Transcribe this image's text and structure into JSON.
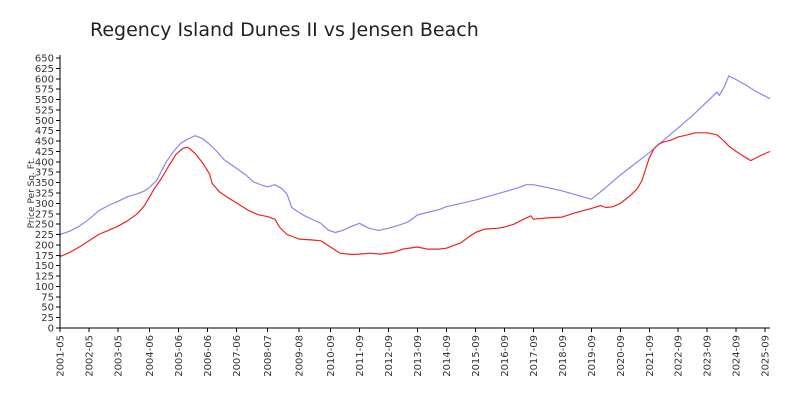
{
  "chart_data": {
    "type": "line",
    "title": "Regency Island Dunes II vs Jensen Beach",
    "xlabel": "",
    "ylabel": "Price Per Sq. Ft.",
    "ylim": [
      0,
      650
    ],
    "yticks": [
      0,
      25,
      50,
      75,
      100,
      125,
      150,
      175,
      200,
      225,
      250,
      275,
      300,
      325,
      350,
      375,
      400,
      425,
      450,
      475,
      500,
      525,
      550,
      575,
      600,
      625,
      650
    ],
    "xticks": [
      "2001-05",
      "2002-05",
      "2003-05",
      "2004-06",
      "2005-06",
      "2006-06",
      "2007-06",
      "2008-07",
      "2009-08",
      "2010-09",
      "2011-09",
      "2012-09",
      "2013-09",
      "2014-09",
      "2015-09",
      "2016-09",
      "2017-09",
      "2018-09",
      "2019-09",
      "2020-09",
      "2021-09",
      "2022-09",
      "2023-09",
      "2024-09",
      "2025-09"
    ],
    "xrange": [
      "2001-05",
      "2025-11"
    ],
    "grid": false,
    "legend": "none",
    "series": [
      {
        "color": "#8888ee",
        "points": [
          [
            "2001-05",
            225
          ],
          [
            "2001-09",
            233
          ],
          [
            "2002-01",
            245
          ],
          [
            "2002-05",
            262
          ],
          [
            "2002-09",
            282
          ],
          [
            "2003-01",
            295
          ],
          [
            "2003-05",
            305
          ],
          [
            "2003-09",
            316
          ],
          [
            "2004-01",
            323
          ],
          [
            "2004-04",
            330
          ],
          [
            "2004-06",
            338
          ],
          [
            "2004-09",
            355
          ],
          [
            "2004-11",
            378
          ],
          [
            "2005-01",
            400
          ],
          [
            "2005-04",
            425
          ],
          [
            "2005-07",
            445
          ],
          [
            "2005-10",
            455
          ],
          [
            "2006-01",
            463
          ],
          [
            "2006-04",
            456
          ],
          [
            "2006-07",
            442
          ],
          [
            "2006-10",
            425
          ],
          [
            "2007-01",
            405
          ],
          [
            "2007-06",
            385
          ],
          [
            "2007-10",
            368
          ],
          [
            "2008-01",
            352
          ],
          [
            "2008-05",
            343
          ],
          [
            "2008-07",
            340
          ],
          [
            "2008-10",
            345
          ],
          [
            "2009-01",
            335
          ],
          [
            "2009-03",
            322
          ],
          [
            "2009-05",
            290
          ],
          [
            "2009-08",
            278
          ],
          [
            "2009-11",
            268
          ],
          [
            "2010-02",
            260
          ],
          [
            "2010-05",
            252
          ],
          [
            "2010-08",
            236
          ],
          [
            "2010-11",
            230
          ],
          [
            "2011-02",
            235
          ],
          [
            "2011-05",
            243
          ],
          [
            "2011-09",
            252
          ],
          [
            "2012-01",
            240
          ],
          [
            "2012-05",
            235
          ],
          [
            "2012-09",
            240
          ],
          [
            "2013-01",
            247
          ],
          [
            "2013-05",
            255
          ],
          [
            "2013-09",
            272
          ],
          [
            "2014-01",
            278
          ],
          [
            "2014-06",
            285
          ],
          [
            "2014-09",
            292
          ],
          [
            "2015-03",
            300
          ],
          [
            "2015-09",
            308
          ],
          [
            "2016-03",
            318
          ],
          [
            "2016-09",
            328
          ],
          [
            "2017-03",
            338
          ],
          [
            "2017-06",
            345
          ],
          [
            "2017-09",
            345
          ],
          [
            "2018-03",
            338
          ],
          [
            "2018-09",
            330
          ],
          [
            "2019-03",
            320
          ],
          [
            "2019-09",
            310
          ],
          [
            "2020-03",
            338
          ],
          [
            "2020-09",
            368
          ],
          [
            "2021-03",
            395
          ],
          [
            "2021-09",
            422
          ],
          [
            "2022-03",
            452
          ],
          [
            "2022-09",
            482
          ],
          [
            "2023-03",
            512
          ],
          [
            "2023-09",
            545
          ],
          [
            "2024-01",
            568
          ],
          [
            "2024-02",
            560
          ],
          [
            "2024-04",
            580
          ],
          [
            "2024-06",
            607
          ],
          [
            "2024-09",
            598
          ],
          [
            "2025-01",
            585
          ],
          [
            "2025-05",
            570
          ],
          [
            "2025-09",
            558
          ],
          [
            "2025-11",
            552
          ]
        ]
      },
      {
        "color": "#ee2222",
        "points": [
          [
            "2001-05",
            172
          ],
          [
            "2001-09",
            182
          ],
          [
            "2002-01",
            195
          ],
          [
            "2002-05",
            210
          ],
          [
            "2002-09",
            225
          ],
          [
            "2003-01",
            235
          ],
          [
            "2003-05",
            245
          ],
          [
            "2003-09",
            258
          ],
          [
            "2004-01",
            275
          ],
          [
            "2004-04",
            295
          ],
          [
            "2004-06",
            315
          ],
          [
            "2004-08",
            335
          ],
          [
            "2004-11",
            360
          ],
          [
            "2005-02",
            390
          ],
          [
            "2005-05",
            418
          ],
          [
            "2005-08",
            433
          ],
          [
            "2005-10",
            435
          ],
          [
            "2006-01",
            420
          ],
          [
            "2006-04",
            398
          ],
          [
            "2006-07",
            370
          ],
          [
            "2006-08",
            348
          ],
          [
            "2006-11",
            328
          ],
          [
            "2007-03",
            312
          ],
          [
            "2007-07",
            298
          ],
          [
            "2007-11",
            283
          ],
          [
            "2008-03",
            273
          ],
          [
            "2008-07",
            268
          ],
          [
            "2008-10",
            262
          ],
          [
            "2008-12",
            242
          ],
          [
            "2009-03",
            225
          ],
          [
            "2009-08",
            214
          ],
          [
            "2010-01",
            212
          ],
          [
            "2010-05",
            210
          ],
          [
            "2010-09",
            195
          ],
          [
            "2011-01",
            180
          ],
          [
            "2011-06",
            177
          ],
          [
            "2011-09",
            178
          ],
          [
            "2012-01",
            180
          ],
          [
            "2012-06",
            178
          ],
          [
            "2012-11",
            182
          ],
          [
            "2013-03",
            190
          ],
          [
            "2013-09",
            195
          ],
          [
            "2014-01",
            190
          ],
          [
            "2014-06",
            190
          ],
          [
            "2014-09",
            192
          ],
          [
            "2015-03",
            205
          ],
          [
            "2015-06",
            218
          ],
          [
            "2015-09",
            230
          ],
          [
            "2016-01",
            238
          ],
          [
            "2016-06",
            240
          ],
          [
            "2016-09",
            243
          ],
          [
            "2017-01",
            250
          ],
          [
            "2017-05",
            262
          ],
          [
            "2017-08",
            270
          ],
          [
            "2017-09",
            262
          ],
          [
            "2018-03",
            265
          ],
          [
            "2018-09",
            267
          ],
          [
            "2019-01",
            275
          ],
          [
            "2019-06",
            283
          ],
          [
            "2019-09",
            288
          ],
          [
            "2020-01",
            295
          ],
          [
            "2020-03",
            290
          ],
          [
            "2020-06",
            292
          ],
          [
            "2020-09",
            300
          ],
          [
            "2021-01",
            318
          ],
          [
            "2021-04",
            335
          ],
          [
            "2021-06",
            355
          ],
          [
            "2021-09",
            410
          ],
          [
            "2021-11",
            432
          ],
          [
            "2022-01",
            443
          ],
          [
            "2022-03",
            448
          ],
          [
            "2022-06",
            452
          ],
          [
            "2022-09",
            460
          ],
          [
            "2023-01",
            465
          ],
          [
            "2023-04",
            470
          ],
          [
            "2023-09",
            470
          ],
          [
            "2024-01",
            465
          ],
          [
            "2024-04",
            450
          ],
          [
            "2024-06",
            438
          ],
          [
            "2024-09",
            425
          ],
          [
            "2025-01",
            410
          ],
          [
            "2025-03",
            403
          ],
          [
            "2025-06",
            412
          ],
          [
            "2025-09",
            420
          ],
          [
            "2025-11",
            425
          ]
        ]
      }
    ]
  }
}
